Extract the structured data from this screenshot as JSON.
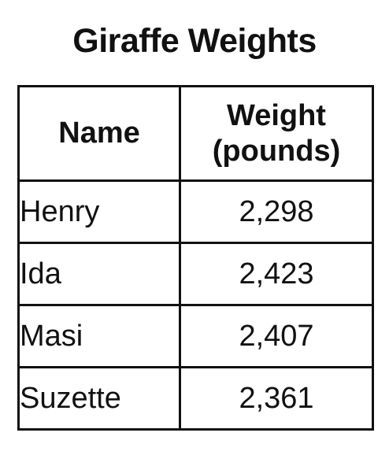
{
  "title": "Giraffe Weights",
  "table": {
    "headers": {
      "name": "Name",
      "weight_line1": "Weight",
      "weight_line2": "(pounds)"
    },
    "rows": [
      {
        "name": "Henry",
        "weight": "2,298"
      },
      {
        "name": "Ida",
        "weight": "2,423"
      },
      {
        "name": "Masi",
        "weight": "2,407"
      },
      {
        "name": "Suzette",
        "weight": "2,361"
      }
    ]
  }
}
